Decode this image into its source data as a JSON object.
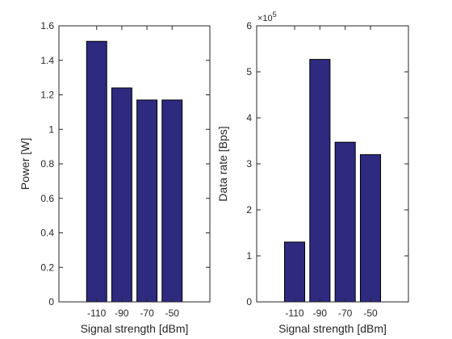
{
  "chart_data": [
    {
      "type": "bar",
      "categories": [
        "-110",
        "-90",
        "-70",
        "-50"
      ],
      "values": [
        1.51,
        1.24,
        1.17,
        1.17
      ],
      "xlabel": "Signal strength [dBm]",
      "ylabel": "Power [W]",
      "ylim": [
        0,
        1.6
      ],
      "xlim": [
        -140,
        -20
      ],
      "bar_color": "#2e2a80",
      "y_ticks": [
        0,
        0.2,
        0.4,
        0.6,
        0.8,
        1,
        1.2,
        1.4,
        1.6
      ],
      "y_tick_labels": [
        "0",
        "0.2",
        "0.4",
        "0.6",
        "0.8",
        "1",
        "1.2",
        "1.4",
        "1.6"
      ],
      "x_tick_labels": [
        "-110",
        "-90",
        "-70",
        "-50"
      ],
      "grid": false
    },
    {
      "type": "bar",
      "categories": [
        "-110",
        "-90",
        "-70",
        "-50"
      ],
      "values": [
        130000,
        527000,
        347000,
        320000
      ],
      "xlabel": "Signal strength [dBm]",
      "ylabel": "Data rate [Bps]",
      "ylim": [
        0,
        600000
      ],
      "xlim": [
        -140,
        -20
      ],
      "bar_color": "#2e2a80",
      "y_ticks": [
        0,
        100000,
        200000,
        300000,
        400000,
        500000,
        600000
      ],
      "y_tick_labels": [
        "0",
        "1",
        "2",
        "3",
        "4",
        "5",
        "6"
      ],
      "x_tick_labels": [
        "-110",
        "-90",
        "-70",
        "-50"
      ],
      "y_exponent_label": "×10",
      "y_exponent_power": "5",
      "grid": false
    }
  ]
}
